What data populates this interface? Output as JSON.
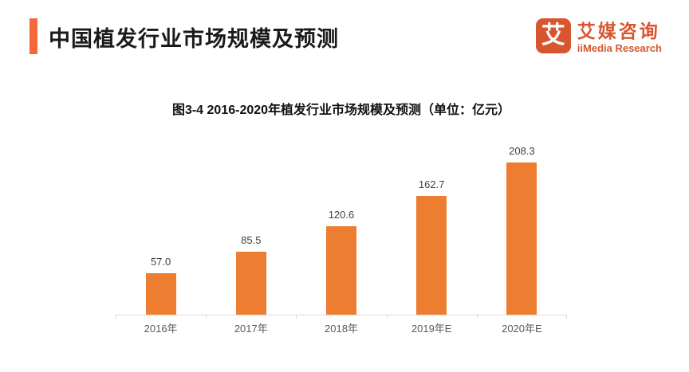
{
  "header": {
    "title": "中国植发行业市场规模及预测",
    "accent_color": "#F4683C"
  },
  "logo": {
    "mark_char": "艾",
    "name_cn": "艾媒咨询",
    "name_en": "iiMedia Research",
    "color": "#D9552E"
  },
  "chart_data": {
    "type": "bar",
    "title": "图3-4 2016-2020年植发行业市场规模及预测（单位：亿元）",
    "categories": [
      "2016年",
      "2017年",
      "2018年",
      "2019年E",
      "2020年E"
    ],
    "values": [
      57.0,
      85.5,
      120.6,
      162.7,
      208.3
    ],
    "value_labels": [
      "57.0",
      "85.5",
      "120.6",
      "162.7",
      "208.3"
    ],
    "xlabel": "",
    "ylabel": "亿元",
    "ylim": [
      0,
      245
    ],
    "grid": false,
    "legend": false,
    "bar_color": "#ED7D31",
    "value_label_color": "#3f3f3f",
    "axis_label_color": "#595959",
    "axis_line_color": "#D9D9D9"
  }
}
